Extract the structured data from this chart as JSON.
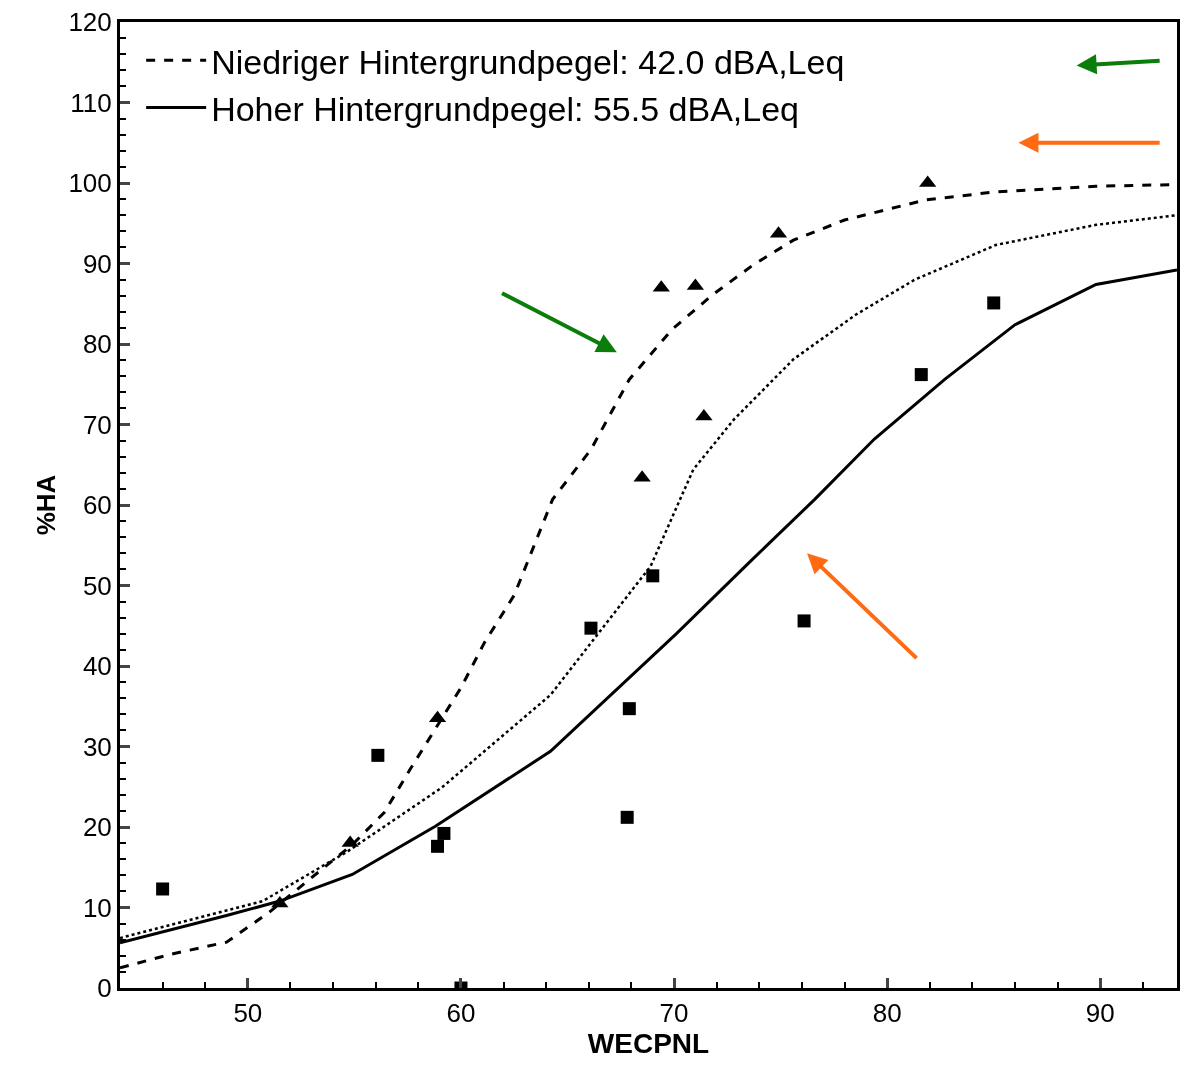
{
  "chart_data": {
    "type": "line",
    "xlabel": "WECPNL",
    "ylabel": "%HA",
    "xlim": [
      44,
      93.6
    ],
    "ylim": [
      0,
      120
    ],
    "xticks": [
      50,
      60,
      70,
      80,
      90
    ],
    "yticks": [
      0,
      10,
      20,
      30,
      40,
      50,
      60,
      70,
      80,
      90,
      100,
      110,
      120
    ],
    "legend": "top left",
    "series": [
      {
        "name": "Niedriger Hintergrundpegel: 42.0 dBA,Leq",
        "color": "#000000",
        "line_style": "dashed",
        "x": [
          44,
          46.4,
          49,
          51,
          52.8,
          54.9,
          56.4,
          57.6,
          60,
          61.1,
          62.5,
          64.3,
          66.1,
          67.9,
          69.9,
          71.8,
          73.7,
          75.6,
          78,
          81.8,
          85.1,
          89.8,
          93.6
        ],
        "values": [
          2.5,
          4.2,
          5.7,
          9.4,
          13.3,
          17.8,
          21.8,
          27.1,
          37.3,
          42.9,
          48.8,
          60.7,
          66.9,
          75.6,
          81.8,
          86.1,
          89.8,
          92.9,
          95.4,
          97.9,
          98.9,
          99.6,
          99.8
        ]
      },
      {
        "name": "Hoher Hintergrundpegel: 55.5 dBA,Leq",
        "color": "#000000",
        "line_style": "solid",
        "x": [
          44,
          49,
          51.5,
          54.9,
          58.8,
          64.2,
          70.1,
          73.7,
          76.6,
          79.4,
          82.7,
          86,
          89.8,
          93.6
        ],
        "values": [
          5.6,
          9.0,
          10.8,
          14.1,
          20.1,
          29.4,
          44.0,
          53.3,
          60.7,
          68.2,
          75.6,
          82.4,
          87.4,
          89.2
        ]
      },
      {
        "color": "#000000",
        "line_style": "dotted",
        "x": [
          44,
          50.7,
          54.7,
          59.1,
          64.2,
          68.9,
          70.9,
          72.8,
          75.6,
          78.5,
          81.3,
          85.1,
          89.8,
          93.6
        ],
        "values": [
          6.2,
          10.8,
          17.0,
          24.9,
          36.4,
          52.4,
          64.4,
          70.6,
          78.1,
          83.6,
          88,
          92.3,
          94.8,
          96.0
        ]
      },
      {
        "type": "scatter",
        "marker": "triangle",
        "color": "#000000",
        "x": [
          51.5,
          54.8,
          58.9,
          68.5,
          69.4,
          71.0,
          71.4,
          74.9,
          81.9
        ],
        "values": [
          10.5,
          18.0,
          33.5,
          63.4,
          87.0,
          87.2,
          71.0,
          93.7,
          100
        ]
      },
      {
        "type": "scatter",
        "marker": "square",
        "color": "#000000",
        "x": [
          46.0,
          56.1,
          58.9,
          59.2,
          60.0,
          66.1,
          67.9,
          67.8,
          69.0,
          76.1,
          81.6,
          85.0
        ],
        "values": [
          12.3,
          28.9,
          17.6,
          19.2,
          0,
          44.7,
          34.7,
          21.2,
          51.2,
          45.6,
          76.2,
          85.1
        ]
      }
    ]
  }
}
